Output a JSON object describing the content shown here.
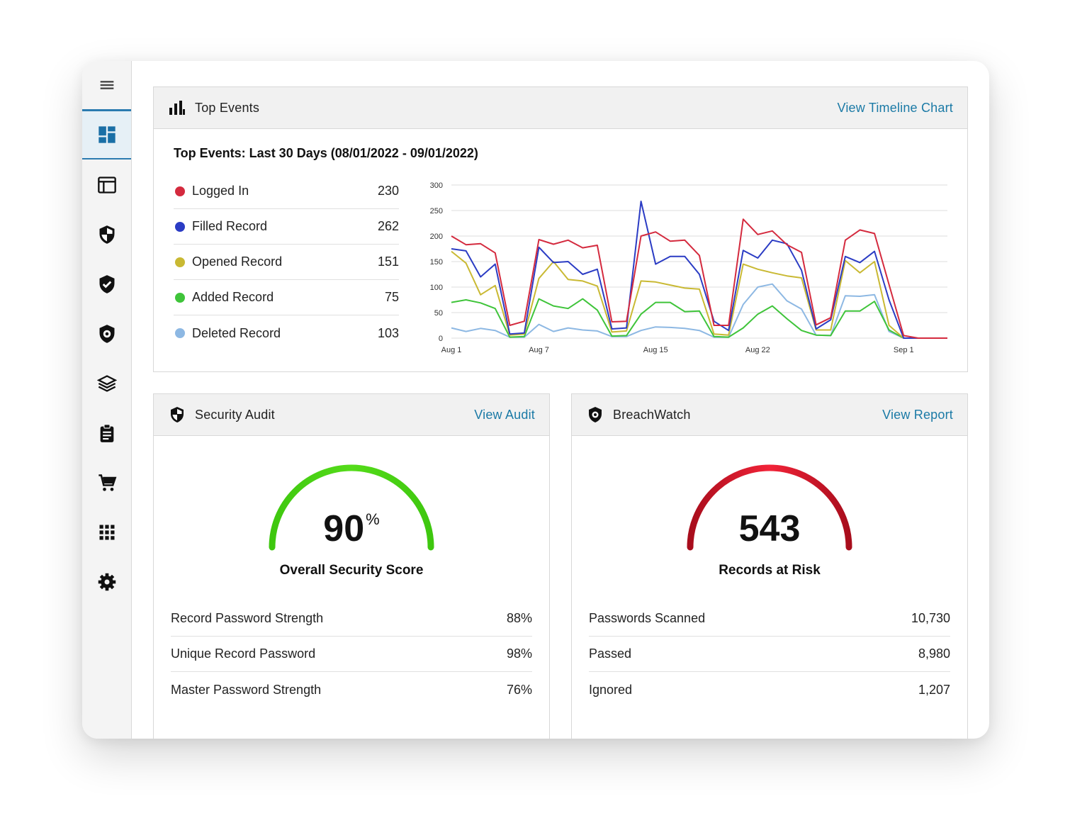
{
  "sidebar": {
    "items": [
      {
        "icon": "menu-icon"
      },
      {
        "icon": "dashboard-icon",
        "active": true
      },
      {
        "icon": "admin-console-icon"
      },
      {
        "icon": "security-audit-icon"
      },
      {
        "icon": "compliance-icon"
      },
      {
        "icon": "breachwatch-icon"
      },
      {
        "icon": "layers-icon"
      },
      {
        "icon": "reports-icon"
      },
      {
        "icon": "cart-icon"
      },
      {
        "icon": "apps-icon"
      },
      {
        "icon": "settings-icon"
      }
    ],
    "accent_color": "#2b7bb0"
  },
  "top_events": {
    "title": "Top Events",
    "link": "View Timeline Chart",
    "subtitle": "Top Events: Last 30 Days (08/01/2022 - 09/01/2022)",
    "legend": [
      {
        "label": "Logged In",
        "value": "230",
        "color": "#d42a3e"
      },
      {
        "label": "Filled Record",
        "value": "262",
        "color": "#2b3cc4"
      },
      {
        "label": "Opened Record",
        "value": "151",
        "color": "#c9b933"
      },
      {
        "label": "Added Record",
        "value": "75",
        "color": "#3fc43a"
      },
      {
        "label": "Deleted Record",
        "value": "103",
        "color": "#8db8e3"
      }
    ]
  },
  "chart_data": {
    "type": "line",
    "x": [
      "Aug 1",
      "Aug 2",
      "Aug 3",
      "Aug 4",
      "Aug 5",
      "Aug 6",
      "Aug 7",
      "Aug 8",
      "Aug 9",
      "Aug 10",
      "Aug 11",
      "Aug 12",
      "Aug 13",
      "Aug 14",
      "Aug 15",
      "Aug 16",
      "Aug 17",
      "Aug 18",
      "Aug 19",
      "Aug 20",
      "Aug 21",
      "Aug 22",
      "Aug 23",
      "Aug 24",
      "Aug 25",
      "Aug 26",
      "Aug 27",
      "Aug 28",
      "Aug 29",
      "Aug 30",
      "Aug 31",
      "Sep 1",
      "Sep 2",
      "Sep 3",
      "Sep 4"
    ],
    "xticks": [
      "Aug 1",
      "Aug 7",
      "Aug 15",
      "Aug 22",
      "Sep 1"
    ],
    "ylim": [
      0,
      300
    ],
    "yticks": [
      0,
      50,
      100,
      150,
      200,
      250,
      300
    ],
    "grid": true,
    "series": [
      {
        "name": "Logged In",
        "color": "#d42a3e",
        "values": [
          200,
          183,
          185,
          167,
          25,
          33,
          193,
          184,
          192,
          177,
          182,
          32,
          33,
          200,
          208,
          190,
          192,
          162,
          25,
          25,
          233,
          203,
          210,
          183,
          168,
          26,
          40,
          192,
          212,
          205,
          105,
          5,
          0,
          0,
          0
        ]
      },
      {
        "name": "Filled Record",
        "color": "#2b3cc4",
        "values": [
          175,
          171,
          120,
          145,
          8,
          10,
          178,
          148,
          150,
          125,
          135,
          18,
          20,
          268,
          145,
          160,
          160,
          125,
          33,
          15,
          172,
          157,
          192,
          185,
          133,
          18,
          36,
          160,
          148,
          170,
          75,
          0,
          0,
          0,
          0
        ]
      },
      {
        "name": "Opened Record",
        "color": "#c9b933",
        "values": [
          170,
          147,
          85,
          103,
          6,
          8,
          117,
          150,
          115,
          112,
          102,
          12,
          14,
          112,
          110,
          104,
          98,
          96,
          8,
          6,
          145,
          135,
          128,
          122,
          118,
          16,
          16,
          152,
          128,
          150,
          25,
          0,
          0,
          0,
          0
        ]
      },
      {
        "name": "Added Record",
        "color": "#3fc43a",
        "values": [
          70,
          75,
          69,
          58,
          2,
          3,
          77,
          63,
          58,
          77,
          55,
          4,
          5,
          47,
          70,
          70,
          52,
          53,
          3,
          2,
          20,
          47,
          63,
          38,
          15,
          6,
          5,
          53,
          53,
          72,
          16,
          0,
          0,
          0,
          0
        ]
      },
      {
        "name": "Deleted Record",
        "color": "#8db8e3",
        "values": [
          20,
          13,
          19,
          15,
          2,
          2,
          27,
          13,
          20,
          16,
          14,
          3,
          3,
          15,
          22,
          21,
          19,
          15,
          2,
          2,
          66,
          100,
          106,
          73,
          57,
          6,
          5,
          83,
          82,
          85,
          13,
          0,
          0,
          0,
          0
        ]
      }
    ]
  },
  "security_audit": {
    "title": "Security Audit",
    "link": "View Audit",
    "score": "90",
    "score_unit": "%",
    "score_fraction": 0.9,
    "label": "Overall Security Score",
    "gauge_color": "#44d314",
    "stats": [
      {
        "label": "Record Password Strength",
        "value": "88%"
      },
      {
        "label": "Unique Record Password",
        "value": "98%"
      },
      {
        "label": "Master Password Strength",
        "value": "76%"
      }
    ]
  },
  "breachwatch": {
    "title": "BreachWatch",
    "link": "View Report",
    "count": "543",
    "label": "Records at Risk",
    "gauge_color": "#d11a2a",
    "stats": [
      {
        "label": "Passwords Scanned",
        "value": "10,730"
      },
      {
        "label": "Passed",
        "value": "8,980"
      },
      {
        "label": "Ignored",
        "value": "1,207"
      }
    ]
  }
}
